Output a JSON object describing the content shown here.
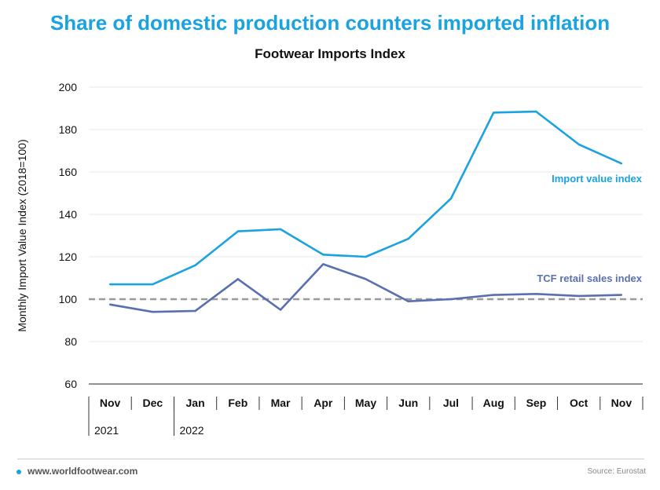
{
  "header": {
    "title": "Share of domestic production counters imported inflation",
    "subtitle": "Footwear Imports Index"
  },
  "footer": {
    "site": "www.worldfootwear.com",
    "source": "Source: Eurostat"
  },
  "colors": {
    "title": "#1aa3e0",
    "import_series": "#1aa3e0",
    "tcf_series": "#5a6fb0",
    "reference_line": "#9a9a9a"
  },
  "chart_data": {
    "type": "line",
    "title": "Footwear Imports Index",
    "xlabel": "",
    "ylabel": "Monthly Import Value Index (2018=100)",
    "categories": [
      "Nov",
      "Dec",
      "Jan",
      "Feb",
      "Mar",
      "Apr",
      "May",
      "Jun",
      "Jul",
      "Aug",
      "Sep",
      "Oct",
      "Nov"
    ],
    "year_labels": [
      {
        "label": "2021",
        "start_index": 0
      },
      {
        "label": "2022",
        "start_index": 2
      }
    ],
    "ylim": [
      60,
      200
    ],
    "yticks": [
      60,
      80,
      100,
      120,
      140,
      160,
      180,
      200
    ],
    "grid": true,
    "reference_line": 100,
    "series": [
      {
        "name": "Import value index",
        "color": "#1aa3e0",
        "values": [
          107,
          107,
          116,
          132,
          133,
          121,
          120,
          128.5,
          147.5,
          188,
          188.5,
          173,
          164
        ]
      },
      {
        "name": "TCF retail sales index",
        "color": "#5a6fb0",
        "values": [
          97.5,
          94,
          94.5,
          109.5,
          95,
          116.5,
          109.5,
          99,
          100,
          102,
          102.5,
          101.5,
          102
        ]
      }
    ]
  }
}
